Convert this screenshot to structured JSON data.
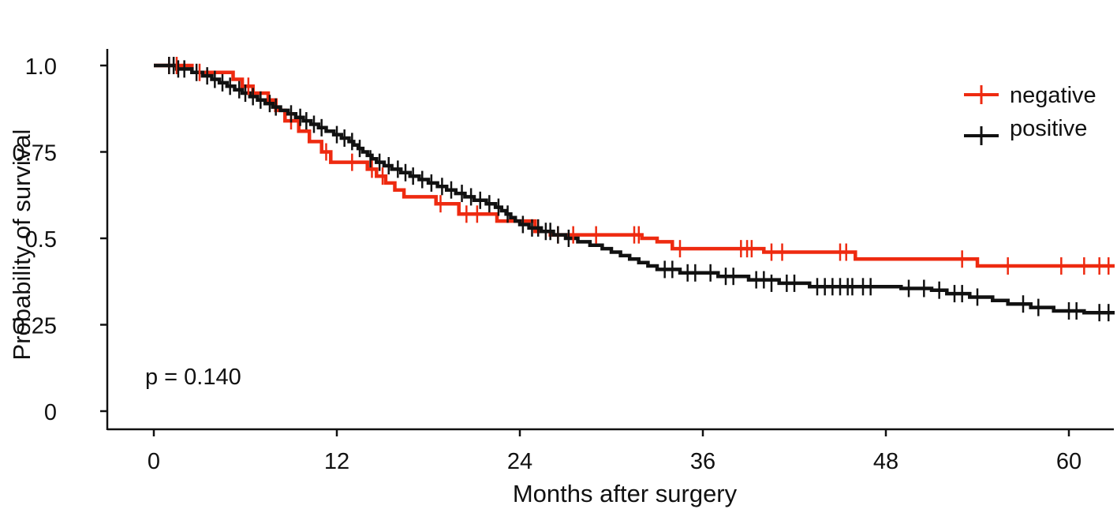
{
  "chart_data": {
    "type": "line",
    "subtype": "kaplan-meier",
    "title": "",
    "xlabel": "Months after surgery",
    "ylabel": "Probability of survival",
    "xlim": [
      0,
      63
    ],
    "ylim": [
      0,
      1.0
    ],
    "xticks": [
      0,
      12,
      24,
      36,
      48,
      60
    ],
    "xtick_labels": [
      "0",
      "12",
      "24",
      "36",
      "48",
      "60"
    ],
    "yticks": [
      0,
      0.25,
      0.5,
      0.75,
      1.0
    ],
    "ytick_labels": [
      "0",
      "0.25",
      "0.5",
      "0.75",
      "1.0"
    ],
    "legend_position": "top-right",
    "annotation": "p = 0.140",
    "series": [
      {
        "name": "negative",
        "color": "#ee2a10",
        "steps": [
          [
            0,
            1.0
          ],
          [
            2.5,
            0.98
          ],
          [
            5.2,
            0.96
          ],
          [
            5.8,
            0.94
          ],
          [
            6.5,
            0.92
          ],
          [
            7.5,
            0.9
          ],
          [
            8.0,
            0.87
          ],
          [
            8.6,
            0.84
          ],
          [
            9.5,
            0.81
          ],
          [
            10.2,
            0.78
          ],
          [
            11.0,
            0.75
          ],
          [
            11.6,
            0.72
          ],
          [
            14.0,
            0.7
          ],
          [
            14.6,
            0.68
          ],
          [
            15.2,
            0.66
          ],
          [
            15.8,
            0.64
          ],
          [
            16.4,
            0.62
          ],
          [
            18.5,
            0.6
          ],
          [
            20.0,
            0.57
          ],
          [
            22.5,
            0.55
          ],
          [
            25.0,
            0.52
          ],
          [
            26.0,
            0.51
          ],
          [
            32.0,
            0.5
          ],
          [
            33.0,
            0.49
          ],
          [
            34.0,
            0.47
          ],
          [
            40.0,
            0.46
          ],
          [
            46.0,
            0.44
          ],
          [
            54.0,
            0.42
          ],
          [
            63.0,
            0.42
          ]
        ],
        "censors": [
          [
            1.0,
            1.0
          ],
          [
            1.5,
            1.0
          ],
          [
            3.0,
            0.98
          ],
          [
            6.2,
            0.94
          ],
          [
            9.0,
            0.84
          ],
          [
            11.3,
            0.75
          ],
          [
            13.0,
            0.72
          ],
          [
            14.3,
            0.7
          ],
          [
            15.0,
            0.68
          ],
          [
            18.8,
            0.6
          ],
          [
            20.5,
            0.57
          ],
          [
            21.2,
            0.57
          ],
          [
            26.5,
            0.51
          ],
          [
            27.5,
            0.51
          ],
          [
            29.0,
            0.51
          ],
          [
            31.5,
            0.51
          ],
          [
            31.8,
            0.51
          ],
          [
            34.5,
            0.47
          ],
          [
            38.5,
            0.47
          ],
          [
            38.9,
            0.47
          ],
          [
            39.2,
            0.47
          ],
          [
            40.5,
            0.46
          ],
          [
            41.2,
            0.46
          ],
          [
            45.0,
            0.46
          ],
          [
            45.4,
            0.46
          ],
          [
            53.0,
            0.44
          ],
          [
            56.0,
            0.42
          ],
          [
            59.5,
            0.42
          ],
          [
            61.0,
            0.42
          ],
          [
            62.0,
            0.42
          ],
          [
            62.6,
            0.42
          ]
        ]
      },
      {
        "name": "positive",
        "color": "#111111",
        "steps": [
          [
            0,
            1.0
          ],
          [
            1.5,
            0.99
          ],
          [
            2.5,
            0.98
          ],
          [
            3.2,
            0.97
          ],
          [
            3.8,
            0.96
          ],
          [
            4.3,
            0.95
          ],
          [
            4.8,
            0.94
          ],
          [
            5.3,
            0.93
          ],
          [
            5.8,
            0.92
          ],
          [
            6.3,
            0.91
          ],
          [
            6.8,
            0.9
          ],
          [
            7.3,
            0.89
          ],
          [
            7.8,
            0.88
          ],
          [
            8.3,
            0.87
          ],
          [
            8.8,
            0.86
          ],
          [
            9.3,
            0.85
          ],
          [
            9.8,
            0.84
          ],
          [
            10.3,
            0.83
          ],
          [
            10.8,
            0.82
          ],
          [
            11.3,
            0.81
          ],
          [
            11.8,
            0.8
          ],
          [
            12.3,
            0.79
          ],
          [
            12.8,
            0.78
          ],
          [
            13.1,
            0.77
          ],
          [
            13.4,
            0.76
          ],
          [
            13.7,
            0.75
          ],
          [
            14.0,
            0.74
          ],
          [
            14.3,
            0.73
          ],
          [
            14.6,
            0.72
          ],
          [
            15.1,
            0.71
          ],
          [
            15.6,
            0.7
          ],
          [
            16.2,
            0.69
          ],
          [
            16.8,
            0.68
          ],
          [
            17.4,
            0.67
          ],
          [
            18.0,
            0.66
          ],
          [
            18.6,
            0.65
          ],
          [
            19.2,
            0.64
          ],
          [
            19.8,
            0.63
          ],
          [
            20.4,
            0.62
          ],
          [
            21.0,
            0.61
          ],
          [
            21.8,
            0.6
          ],
          [
            22.4,
            0.59
          ],
          [
            22.8,
            0.58
          ],
          [
            23.1,
            0.57
          ],
          [
            23.4,
            0.56
          ],
          [
            23.7,
            0.55
          ],
          [
            24.0,
            0.54
          ],
          [
            24.6,
            0.53
          ],
          [
            25.4,
            0.52
          ],
          [
            26.2,
            0.51
          ],
          [
            27.0,
            0.5
          ],
          [
            27.8,
            0.49
          ],
          [
            28.6,
            0.48
          ],
          [
            29.4,
            0.47
          ],
          [
            30.0,
            0.46
          ],
          [
            30.6,
            0.45
          ],
          [
            31.2,
            0.44
          ],
          [
            31.8,
            0.43
          ],
          [
            32.4,
            0.42
          ],
          [
            33.0,
            0.41
          ],
          [
            34.5,
            0.4
          ],
          [
            37.0,
            0.39
          ],
          [
            39.0,
            0.38
          ],
          [
            41.0,
            0.37
          ],
          [
            43.0,
            0.36
          ],
          [
            49.0,
            0.355
          ],
          [
            51.0,
            0.35
          ],
          [
            52.0,
            0.34
          ],
          [
            53.5,
            0.33
          ],
          [
            55.0,
            0.32
          ],
          [
            56.0,
            0.31
          ],
          [
            57.5,
            0.3
          ],
          [
            59.0,
            0.29
          ],
          [
            61.0,
            0.285
          ],
          [
            63.0,
            0.285
          ]
        ],
        "censors": [
          [
            1.0,
            1.0
          ],
          [
            1.3,
            1.0
          ],
          [
            1.6,
            0.99
          ],
          [
            2.0,
            0.99
          ],
          [
            2.8,
            0.98
          ],
          [
            3.5,
            0.97
          ],
          [
            4.0,
            0.96
          ],
          [
            4.5,
            0.95
          ],
          [
            5.0,
            0.94
          ],
          [
            5.6,
            0.93
          ],
          [
            6.0,
            0.92
          ],
          [
            6.5,
            0.91
          ],
          [
            7.0,
            0.9
          ],
          [
            7.6,
            0.89
          ],
          [
            8.0,
            0.88
          ],
          [
            9.0,
            0.86
          ],
          [
            9.6,
            0.85
          ],
          [
            10.0,
            0.84
          ],
          [
            10.5,
            0.83
          ],
          [
            11.0,
            0.82
          ],
          [
            12.0,
            0.8
          ],
          [
            12.5,
            0.79
          ],
          [
            13.0,
            0.78
          ],
          [
            13.5,
            0.76
          ],
          [
            14.2,
            0.73
          ],
          [
            14.8,
            0.72
          ],
          [
            15.4,
            0.71
          ],
          [
            16.0,
            0.7
          ],
          [
            16.5,
            0.69
          ],
          [
            17.0,
            0.68
          ],
          [
            17.6,
            0.67
          ],
          [
            18.2,
            0.66
          ],
          [
            18.9,
            0.65
          ],
          [
            19.5,
            0.64
          ],
          [
            20.2,
            0.63
          ],
          [
            20.8,
            0.62
          ],
          [
            21.4,
            0.61
          ],
          [
            22.0,
            0.6
          ],
          [
            22.6,
            0.59
          ],
          [
            23.2,
            0.57
          ],
          [
            24.2,
            0.54
          ],
          [
            24.8,
            0.53
          ],
          [
            25.2,
            0.53
          ],
          [
            25.7,
            0.52
          ],
          [
            26.0,
            0.52
          ],
          [
            26.5,
            0.51
          ],
          [
            27.2,
            0.5
          ],
          [
            33.5,
            0.41
          ],
          [
            34.0,
            0.41
          ],
          [
            35.0,
            0.4
          ],
          [
            35.5,
            0.4
          ],
          [
            36.5,
            0.4
          ],
          [
            37.5,
            0.39
          ],
          [
            38.0,
            0.39
          ],
          [
            39.5,
            0.38
          ],
          [
            40.0,
            0.38
          ],
          [
            40.5,
            0.37
          ],
          [
            41.5,
            0.37
          ],
          [
            42.0,
            0.37
          ],
          [
            43.5,
            0.36
          ],
          [
            44.0,
            0.36
          ],
          [
            44.5,
            0.36
          ],
          [
            45.0,
            0.36
          ],
          [
            45.5,
            0.36
          ],
          [
            45.8,
            0.36
          ],
          [
            46.5,
            0.36
          ],
          [
            47.0,
            0.36
          ],
          [
            49.5,
            0.355
          ],
          [
            50.5,
            0.355
          ],
          [
            51.5,
            0.35
          ],
          [
            52.5,
            0.34
          ],
          [
            53.0,
            0.34
          ],
          [
            54.0,
            0.33
          ],
          [
            57.0,
            0.31
          ],
          [
            58.0,
            0.3
          ],
          [
            60.0,
            0.29
          ],
          [
            60.5,
            0.29
          ],
          [
            62.0,
            0.285
          ],
          [
            62.6,
            0.285
          ]
        ]
      }
    ]
  }
}
